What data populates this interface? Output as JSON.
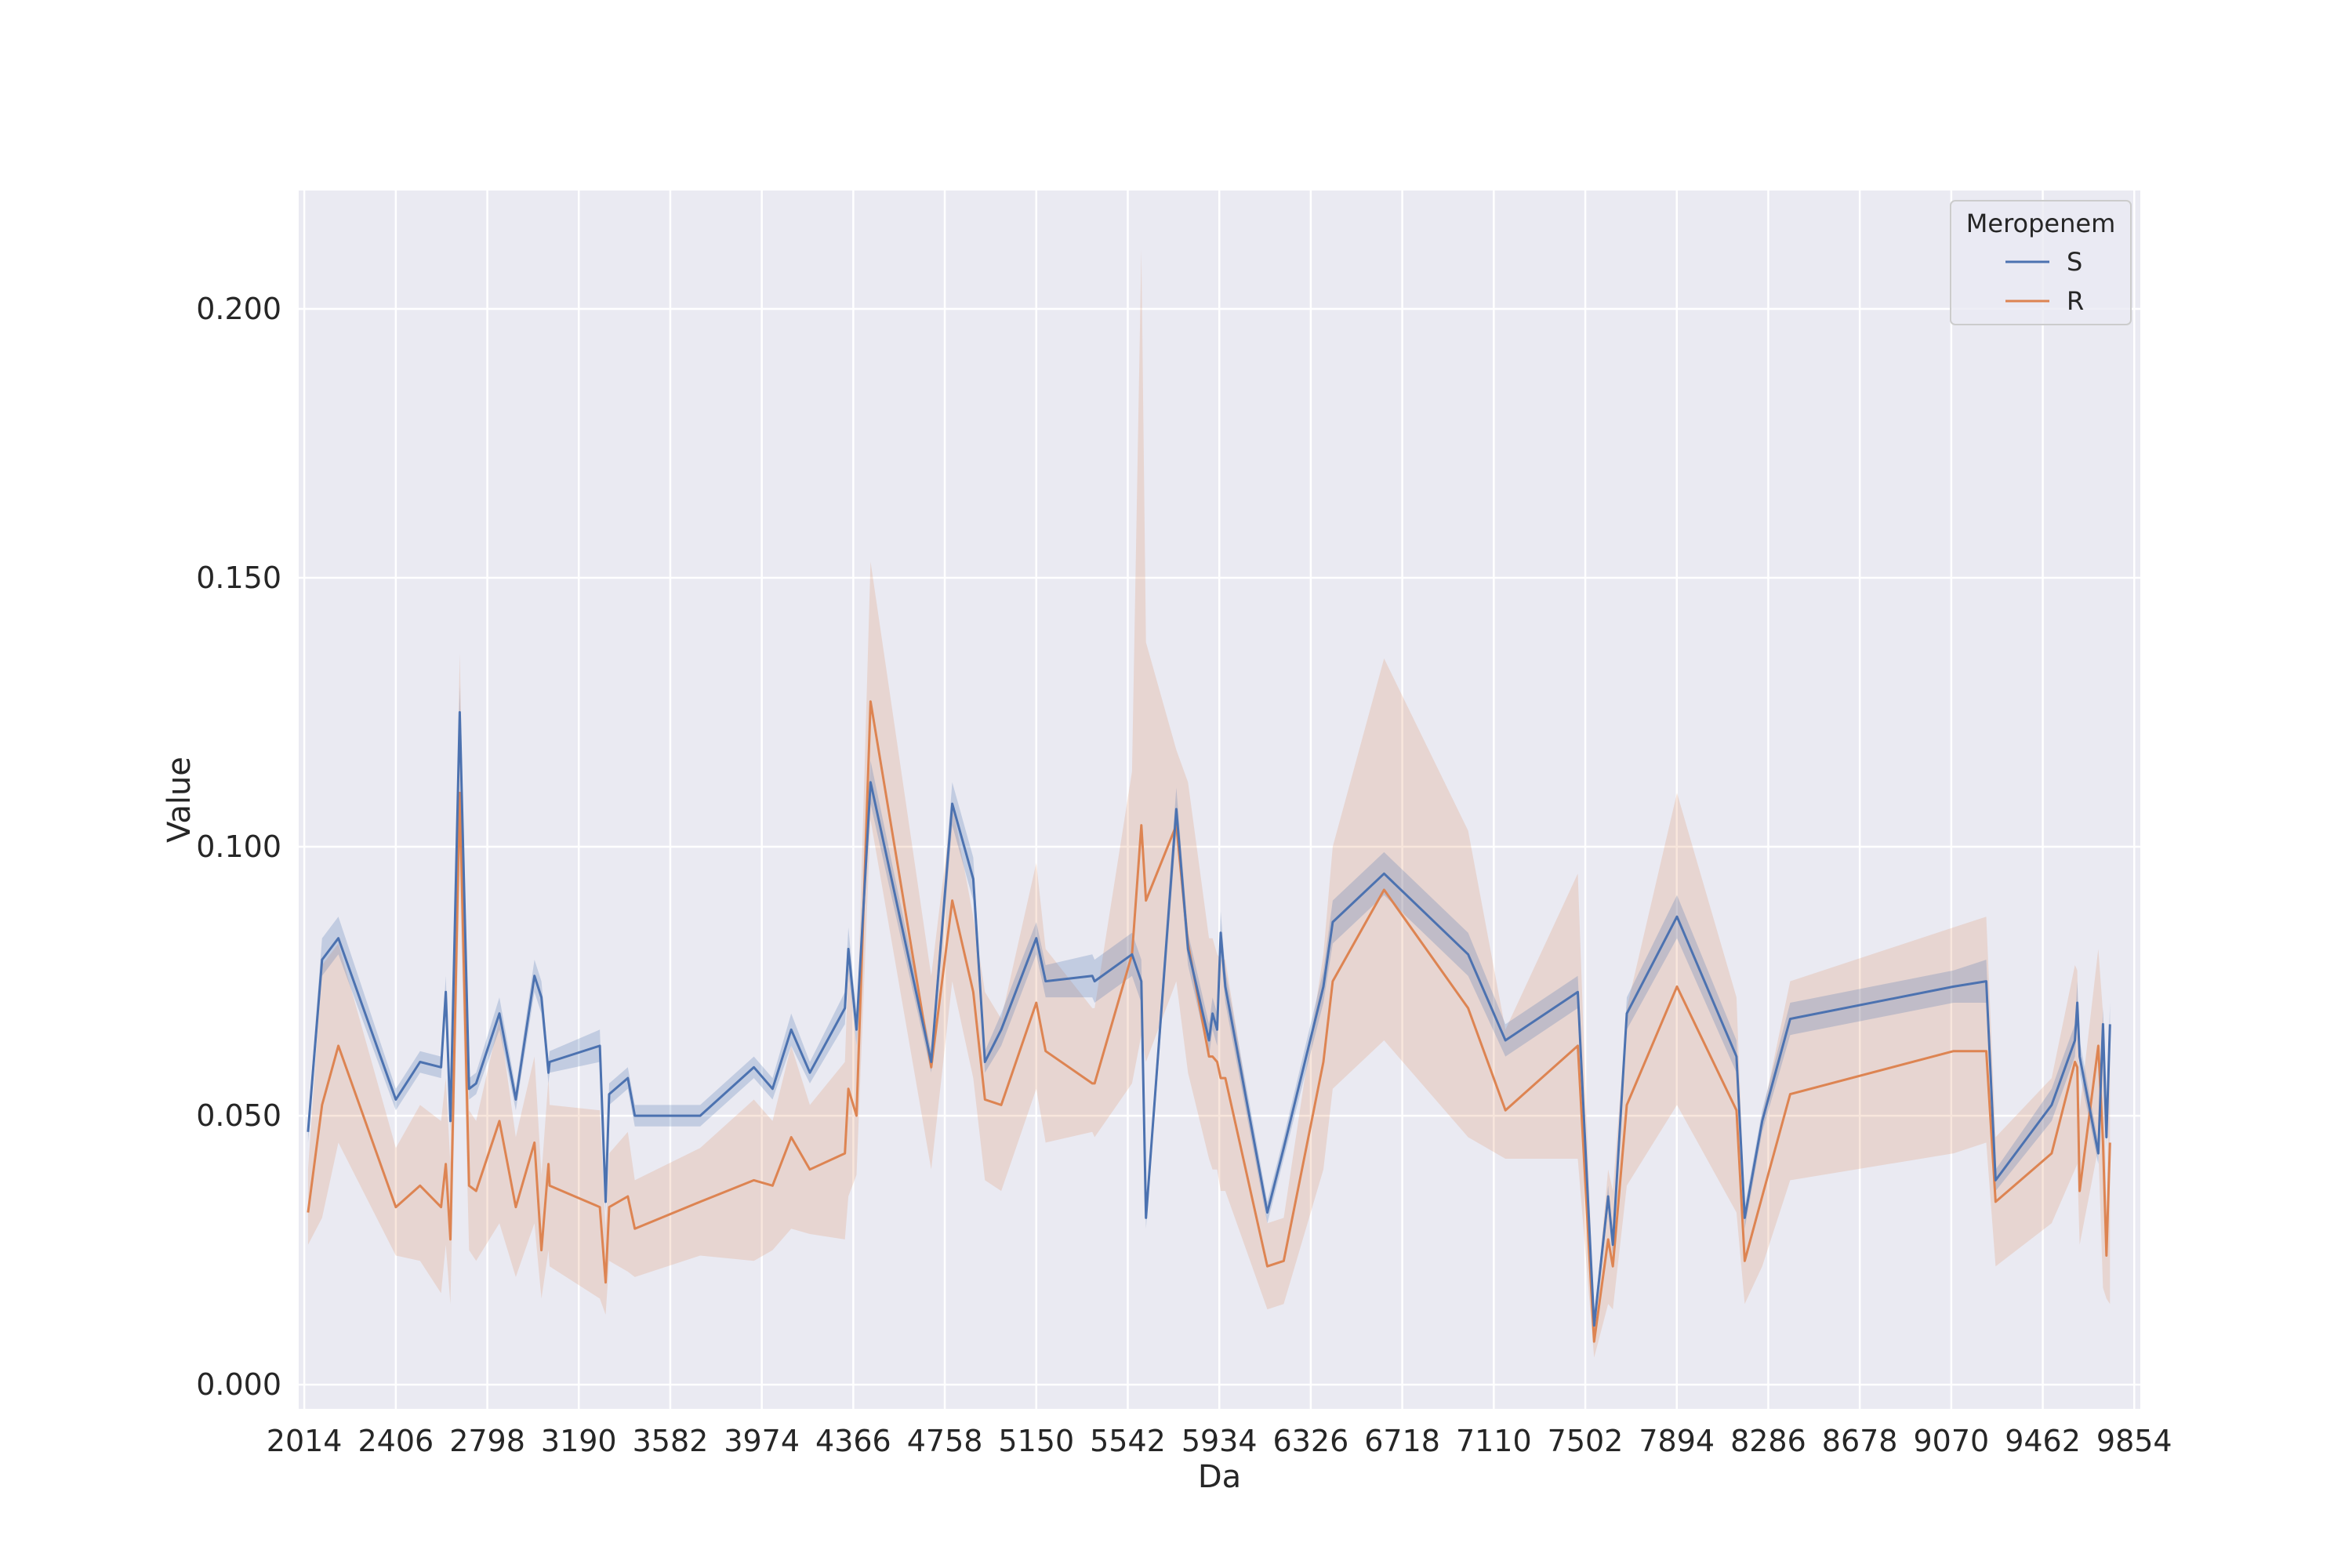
{
  "chart_data": {
    "type": "line",
    "xlabel": "Da",
    "ylabel": "Value",
    "xlim": [
      1990,
      9880
    ],
    "ylim": [
      -0.0045,
      0.222
    ],
    "x_ticks": [
      2014,
      2406,
      2798,
      3190,
      3582,
      3974,
      4366,
      4758,
      5150,
      5542,
      5934,
      6326,
      6718,
      7110,
      7502,
      7894,
      8286,
      8678,
      9070,
      9462,
      9854
    ],
    "y_ticks": [
      0.0,
      0.05,
      0.1,
      0.15,
      0.2
    ],
    "y_tick_labels": [
      "0.000",
      "0.050",
      "0.100",
      "0.150",
      "0.200"
    ],
    "grid": true,
    "background": "#eaeaf2",
    "legend": {
      "title": "Meropenem",
      "placement": "top-right",
      "entries": [
        "S",
        "R"
      ]
    },
    "series": [
      {
        "name": "S",
        "color": "#4c72b0",
        "band_color": "#4c72b0",
        "x": [
          2030,
          2090,
          2160,
          2406,
          2510,
          2600,
          2620,
          2640,
          2680,
          2720,
          2750,
          2850,
          2920,
          3000,
          3030,
          3060,
          3065,
          3280,
          3305,
          3320,
          3400,
          3430,
          3710,
          3940,
          4020,
          4100,
          4180,
          4330,
          4345,
          4380,
          4440,
          4700,
          4790,
          4880,
          4930,
          5000,
          5150,
          5190,
          5390,
          5400,
          5560,
          5600,
          5620,
          5750,
          5800,
          5890,
          5905,
          5925,
          5940,
          5960,
          6140,
          6210,
          6380,
          6420,
          6640,
          7000,
          7160,
          7470,
          7540,
          7600,
          7620,
          7680,
          7895,
          8150,
          8185,
          8260,
          8380,
          9080,
          9220,
          9260,
          9500,
          9600,
          9610,
          9620,
          9700,
          9720,
          9735,
          9750
        ],
        "y": [
          0.047,
          0.079,
          0.083,
          0.053,
          0.06,
          0.059,
          0.073,
          0.049,
          0.125,
          0.055,
          0.056,
          0.069,
          0.053,
          0.076,
          0.072,
          0.058,
          0.06,
          0.063,
          0.034,
          0.054,
          0.057,
          0.05,
          0.05,
          0.059,
          0.055,
          0.066,
          0.058,
          0.07,
          0.081,
          0.066,
          0.112,
          0.06,
          0.108,
          0.094,
          0.06,
          0.066,
          0.083,
          0.075,
          0.076,
          0.075,
          0.08,
          0.075,
          0.031,
          0.107,
          0.081,
          0.064,
          0.069,
          0.066,
          0.084,
          0.074,
          0.032,
          0.044,
          0.074,
          0.086,
          0.095,
          0.08,
          0.064,
          0.073,
          0.011,
          0.035,
          0.026,
          0.069,
          0.087,
          0.061,
          0.031,
          0.049,
          0.068,
          0.074,
          0.075,
          0.038,
          0.052,
          0.064,
          0.071,
          0.061,
          0.043,
          0.067,
          0.046,
          0.067
        ],
        "lower": [
          0.045,
          0.076,
          0.08,
          0.051,
          0.058,
          0.057,
          0.07,
          0.047,
          0.118,
          0.053,
          0.054,
          0.066,
          0.051,
          0.073,
          0.069,
          0.056,
          0.058,
          0.06,
          0.032,
          0.052,
          0.055,
          0.048,
          0.048,
          0.057,
          0.053,
          0.063,
          0.056,
          0.067,
          0.077,
          0.063,
          0.108,
          0.058,
          0.104,
          0.09,
          0.058,
          0.063,
          0.08,
          0.072,
          0.072,
          0.071,
          0.076,
          0.071,
          0.029,
          0.103,
          0.078,
          0.061,
          0.066,
          0.063,
          0.08,
          0.071,
          0.03,
          0.042,
          0.071,
          0.082,
          0.091,
          0.076,
          0.061,
          0.07,
          0.009,
          0.033,
          0.024,
          0.066,
          0.083,
          0.058,
          0.029,
          0.047,
          0.065,
          0.071,
          0.071,
          0.036,
          0.049,
          0.061,
          0.067,
          0.058,
          0.041,
          0.064,
          0.044,
          0.063
        ],
        "upper": [
          0.049,
          0.083,
          0.087,
          0.055,
          0.062,
          0.061,
          0.076,
          0.051,
          0.13,
          0.057,
          0.058,
          0.072,
          0.055,
          0.079,
          0.075,
          0.06,
          0.062,
          0.066,
          0.036,
          0.056,
          0.059,
          0.052,
          0.052,
          0.061,
          0.057,
          0.069,
          0.06,
          0.073,
          0.085,
          0.069,
          0.116,
          0.062,
          0.112,
          0.098,
          0.062,
          0.069,
          0.086,
          0.078,
          0.08,
          0.079,
          0.084,
          0.079,
          0.033,
          0.111,
          0.084,
          0.067,
          0.072,
          0.069,
          0.088,
          0.077,
          0.034,
          0.046,
          0.077,
          0.09,
          0.099,
          0.084,
          0.067,
          0.076,
          0.013,
          0.037,
          0.028,
          0.072,
          0.091,
          0.064,
          0.033,
          0.051,
          0.071,
          0.077,
          0.079,
          0.04,
          0.055,
          0.067,
          0.075,
          0.064,
          0.045,
          0.07,
          0.048,
          0.071
        ]
      },
      {
        "name": "R",
        "color": "#dd8452",
        "band_color": "#dd8452",
        "x": [
          2030,
          2090,
          2160,
          2406,
          2510,
          2600,
          2620,
          2640,
          2680,
          2720,
          2750,
          2850,
          2920,
          3000,
          3030,
          3060,
          3065,
          3280,
          3305,
          3320,
          3400,
          3430,
          3710,
          3940,
          4020,
          4100,
          4180,
          4330,
          4345,
          4380,
          4440,
          4700,
          4790,
          4880,
          4930,
          5000,
          5150,
          5190,
          5390,
          5400,
          5560,
          5600,
          5620,
          5750,
          5800,
          5890,
          5905,
          5925,
          5940,
          5960,
          6140,
          6210,
          6380,
          6420,
          6640,
          7000,
          7160,
          7470,
          7540,
          7600,
          7620,
          7680,
          7895,
          8150,
          8185,
          8260,
          8380,
          9080,
          9220,
          9260,
          9500,
          9600,
          9610,
          9620,
          9700,
          9720,
          9735,
          9750
        ],
        "y": [
          0.032,
          0.052,
          0.063,
          0.033,
          0.037,
          0.033,
          0.041,
          0.027,
          0.11,
          0.037,
          0.036,
          0.049,
          0.033,
          0.045,
          0.025,
          0.041,
          0.037,
          0.033,
          0.019,
          0.033,
          0.035,
          0.029,
          0.034,
          0.038,
          0.037,
          0.046,
          0.04,
          0.043,
          0.055,
          0.05,
          0.127,
          0.059,
          0.09,
          0.073,
          0.053,
          0.052,
          0.071,
          0.062,
          0.056,
          0.056,
          0.08,
          0.104,
          0.09,
          0.104,
          0.082,
          0.061,
          0.061,
          0.06,
          0.057,
          0.057,
          0.022,
          0.023,
          0.06,
          0.075,
          0.092,
          0.07,
          0.051,
          0.063,
          0.008,
          0.027,
          0.022,
          0.052,
          0.074,
          0.051,
          0.023,
          0.035,
          0.054,
          0.062,
          0.062,
          0.034,
          0.043,
          0.06,
          0.059,
          0.036,
          0.063,
          0.045,
          0.024,
          0.045
        ],
        "lower": [
          0.026,
          0.031,
          0.045,
          0.024,
          0.023,
          0.017,
          0.026,
          0.015,
          0.095,
          0.025,
          0.023,
          0.03,
          0.02,
          0.03,
          0.016,
          0.025,
          0.022,
          0.016,
          0.013,
          0.023,
          0.021,
          0.02,
          0.024,
          0.023,
          0.025,
          0.029,
          0.028,
          0.027,
          0.035,
          0.039,
          0.105,
          0.04,
          0.075,
          0.057,
          0.038,
          0.036,
          0.055,
          0.045,
          0.047,
          0.046,
          0.056,
          0.065,
          0.06,
          0.075,
          0.058,
          0.042,
          0.04,
          0.04,
          0.036,
          0.036,
          0.014,
          0.015,
          0.04,
          0.055,
          0.064,
          0.046,
          0.042,
          0.042,
          0.005,
          0.015,
          0.014,
          0.037,
          0.052,
          0.032,
          0.015,
          0.022,
          0.038,
          0.043,
          0.045,
          0.022,
          0.03,
          0.04,
          0.041,
          0.026,
          0.044,
          0.018,
          0.016,
          0.015
        ],
        "upper": [
          0.04,
          0.078,
          0.082,
          0.044,
          0.052,
          0.049,
          0.057,
          0.041,
          0.136,
          0.051,
          0.049,
          0.068,
          0.046,
          0.061,
          0.039,
          0.057,
          0.052,
          0.051,
          0.029,
          0.043,
          0.047,
          0.038,
          0.044,
          0.053,
          0.049,
          0.063,
          0.052,
          0.06,
          0.078,
          0.063,
          0.153,
          0.076,
          0.108,
          0.087,
          0.073,
          0.068,
          0.097,
          0.081,
          0.07,
          0.07,
          0.114,
          0.211,
          0.138,
          0.118,
          0.112,
          0.083,
          0.083,
          0.08,
          0.079,
          0.079,
          0.03,
          0.031,
          0.08,
          0.1,
          0.135,
          0.103,
          0.066,
          0.095,
          0.011,
          0.04,
          0.036,
          0.07,
          0.11,
          0.072,
          0.032,
          0.05,
          0.075,
          0.085,
          0.087,
          0.046,
          0.057,
          0.078,
          0.077,
          0.051,
          0.081,
          0.069,
          0.031,
          0.068
        ]
      }
    ]
  }
}
